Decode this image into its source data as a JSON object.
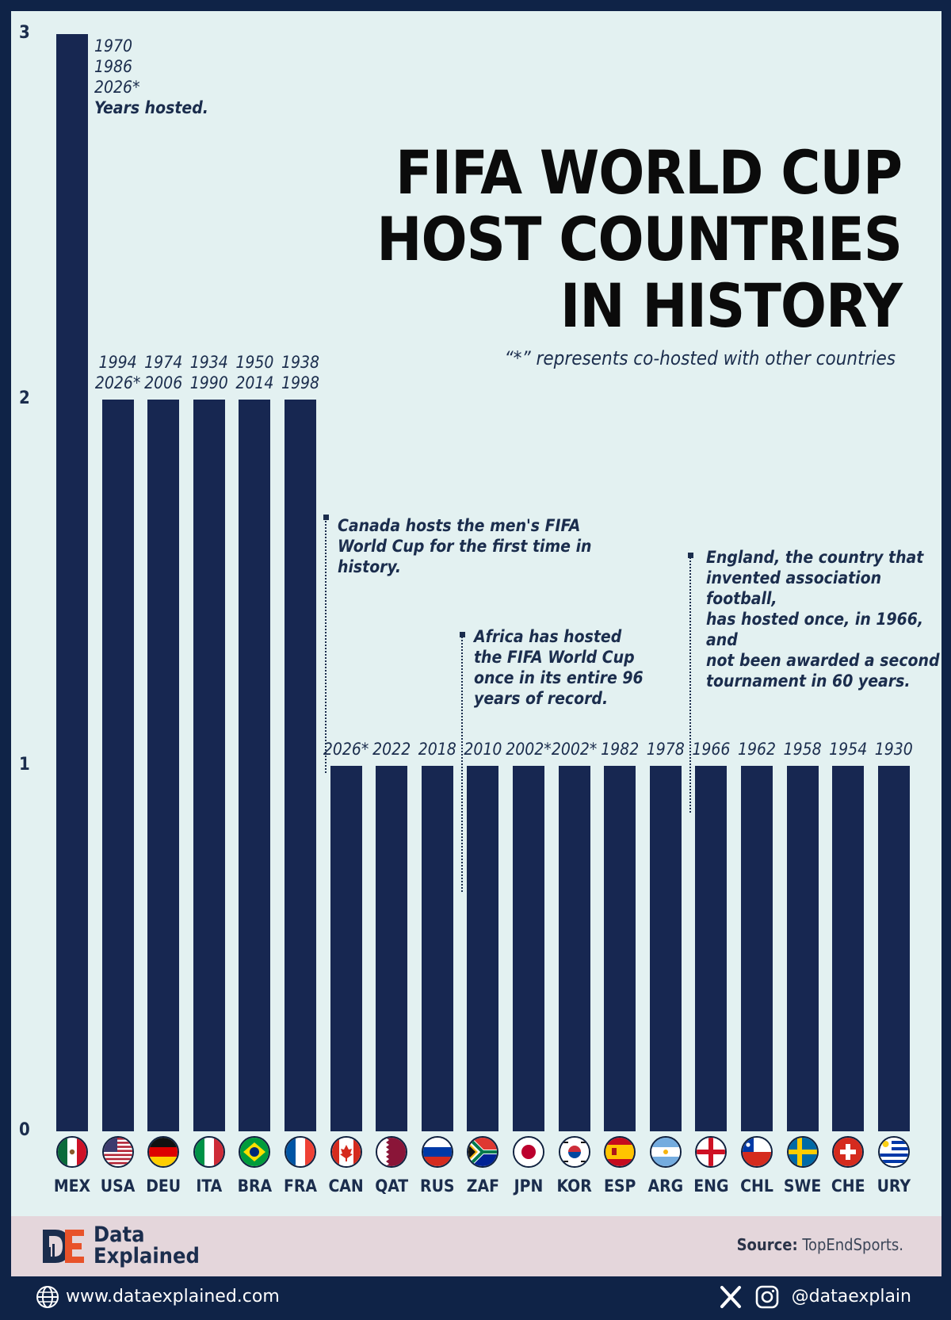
{
  "title_lines": [
    "FIFA WORLD CUP",
    "HOST COUNTRIES",
    "IN HISTORY"
  ],
  "subtitle": "“*” represents co-hosted with other countries",
  "colors": {
    "bar": "#172751",
    "background": "#e3f1f1",
    "frame": "#0f2347",
    "accent": "#e8522a"
  },
  "chart_data": {
    "type": "bar",
    "title": "FIFA WORLD CUP HOST COUNTRIES IN HISTORY",
    "ylim": [
      0,
      3
    ],
    "yticks": [
      "0",
      "1",
      "2",
      "3"
    ],
    "grid": false,
    "categories": [
      "MEX",
      "USA",
      "DEU",
      "ITA",
      "BRA",
      "FRA",
      "CAN",
      "QAT",
      "RUS",
      "ZAF",
      "JPN",
      "KOR",
      "ESP",
      "ARG",
      "ENG",
      "CHL",
      "SWE",
      "CHE",
      "URY"
    ],
    "values": [
      3,
      2,
      2,
      2,
      2,
      2,
      1,
      1,
      1,
      1,
      1,
      1,
      1,
      1,
      1,
      1,
      1,
      1,
      1
    ],
    "years_hosted": [
      [
        "1970",
        "1986",
        "2026*"
      ],
      [
        "1994",
        "2026*"
      ],
      [
        "1974",
        "2006"
      ],
      [
        "1934",
        "1990"
      ],
      [
        "1950",
        "2014"
      ],
      [
        "1938",
        "1998"
      ],
      [
        "2026*"
      ],
      [
        "2022"
      ],
      [
        "2018"
      ],
      [
        "2010"
      ],
      [
        "2002*"
      ],
      [
        "2002*"
      ],
      [
        "1982"
      ],
      [
        "1978"
      ],
      [
        "1966"
      ],
      [
        "1962"
      ],
      [
        "1958"
      ],
      [
        "1954"
      ],
      [
        "1930"
      ]
    ],
    "years_note": "Years hosted.",
    "annotations": [
      {
        "category": "CAN",
        "text": "Canada hosts the men's FIFA World Cup for the first time in history."
      },
      {
        "category": "ZAF",
        "text": "Africa has hosted the FIFA World Cup once in its entire 96 years of record."
      },
      {
        "category": "ENG",
        "text": "England, the country that invented association football, has hosted once, in 1966, and not been awarded a second tournament in 60 years."
      }
    ]
  },
  "annotation_lines": [
    [
      "Canada hosts the men's FIFA",
      "World Cup for the first time in",
      "history."
    ],
    [
      "Africa has hosted",
      "the FIFA World Cup",
      "once in its entire 96",
      "years of record."
    ],
    [
      "England, the country that",
      "invented association football,",
      "has hosted once, in 1966, and",
      "not been awarded a second",
      "tournament in 60 years."
    ]
  ],
  "footer": {
    "brand_line1": "Data",
    "brand_line2": "Explained",
    "source_label": "Source:",
    "source_value": "TopEndSports.",
    "website": "www.dataexplained.com",
    "handle": "@dataexplain"
  },
  "icons": [
    "globe-icon",
    "x-icon",
    "instagram-icon"
  ]
}
